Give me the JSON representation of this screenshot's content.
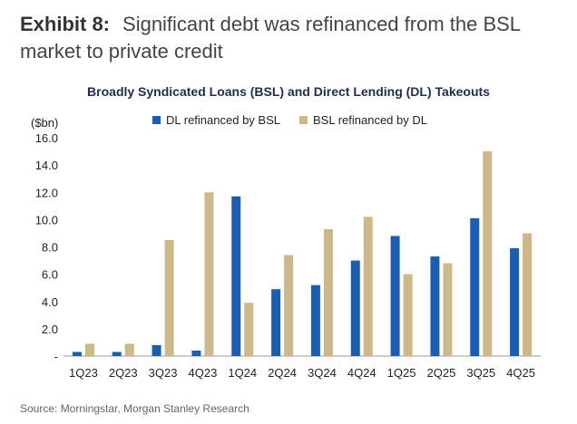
{
  "exhibit": {
    "label": "Exhibit 8:",
    "title": "Significant debt was refinanced from the BSL market to private credit"
  },
  "source": "Source: Morningstar, Morgan Stanley Research",
  "chart_data": {
    "type": "bar",
    "title": "Broadly Syndicated Loans (BSL) and Direct Lending (DL) Takeouts",
    "ylabel": "($bn)",
    "xlabel": "",
    "ylim": [
      0,
      16
    ],
    "yticks": [
      0,
      2,
      4,
      6,
      8,
      10,
      12,
      14,
      16
    ],
    "ytick_labels": [
      "-",
      "2.0",
      "4.0",
      "6.0",
      "8.0",
      "10.0",
      "12.0",
      "14.0",
      "16.0"
    ],
    "grid": false,
    "legend_position": "top",
    "categories": [
      "1Q23",
      "2Q23",
      "3Q23",
      "4Q23",
      "1Q24",
      "2Q24",
      "3Q24",
      "4Q24",
      "1Q25",
      "2Q25",
      "3Q25",
      "4Q25"
    ],
    "series": [
      {
        "name": "DL refinanced by BSL",
        "color": "#1a5db4",
        "values": [
          0.3,
          0.3,
          0.8,
          0.4,
          11.7,
          4.9,
          5.2,
          7.0,
          8.8,
          7.3,
          10.1,
          7.9
        ]
      },
      {
        "name": "BSL refinanced by DL",
        "color": "#cdb887",
        "values": [
          0.9,
          0.9,
          8.5,
          12.0,
          3.9,
          7.4,
          9.3,
          10.2,
          6.0,
          6.8,
          15.0,
          9.0
        ]
      }
    ]
  }
}
